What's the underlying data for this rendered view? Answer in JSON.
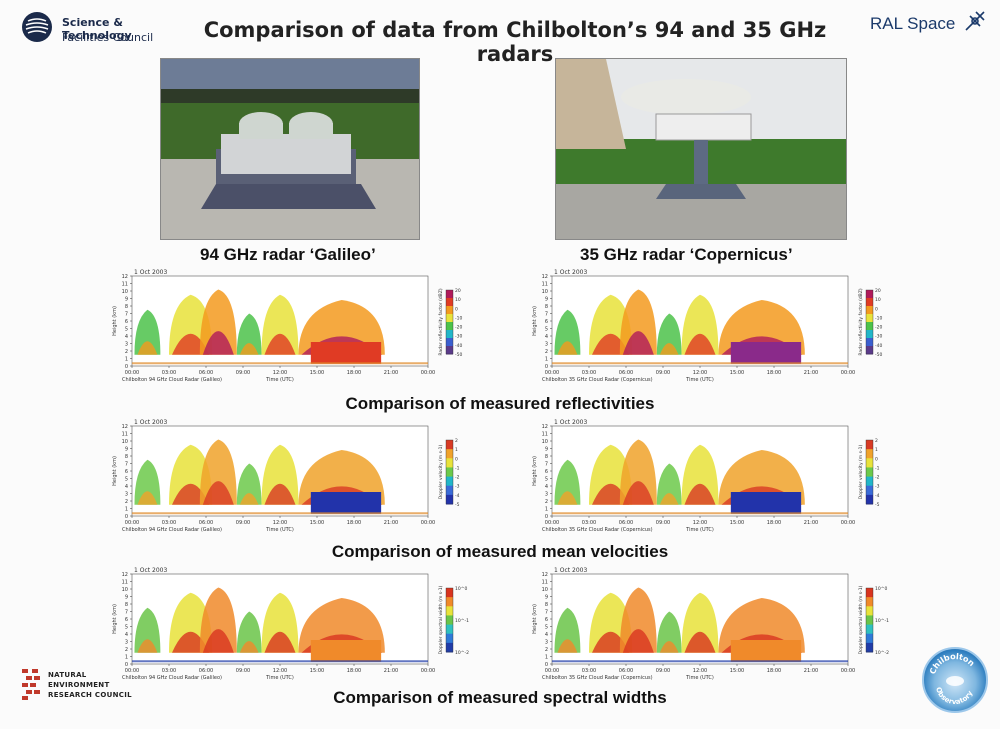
{
  "header": {
    "title": "Comparison of data from Chilbolton’s 94 and 35 GHz radars",
    "logo_left_line1": "Science & Technology",
    "logo_left_line2": "Facilities Council",
    "logo_right": "RAL Space"
  },
  "photos": {
    "left_caption": "94 GHz radar ‘Galileo’",
    "right_caption": "35 GHz radar ‘Copernicus’"
  },
  "sections": {
    "reflectivity": "Comparison of measured reflectivities",
    "velocity": "Comparison of measured mean velocities",
    "spectral_width": "Comparison of measured spectral widths"
  },
  "plots": {
    "date": "1 Oct 2003",
    "time_axis_label": "Time (UTC)",
    "height_axis_label": "Height (km)",
    "time_ticks": [
      "00:00",
      "03:00",
      "06:00",
      "09:00",
      "12:00",
      "15:00",
      "18:00",
      "21:00",
      "00:00"
    ],
    "height_ticks": [
      "0",
      "1",
      "2",
      "3",
      "4",
      "5",
      "6",
      "7",
      "8",
      "9",
      "10",
      "11",
      "12"
    ],
    "galileo_caption": "Chilbolton 94 GHz Cloud Radar (Galileo)",
    "copernicus_caption": "Chilbolton 35 GHz Cloud Radar (Copernicus)",
    "reflectivity_colorbar_label": "Radar reflectivity factor (dBZ)",
    "reflectivity_ticks": [
      "20",
      "10",
      "0",
      "-10",
      "-20",
      "-30",
      "-40",
      "-50"
    ],
    "velocity_colorbar_label": "Doppler velocity (m s-1)",
    "velocity_ticks": [
      "2",
      "1",
      "0",
      "-1",
      "-2",
      "-3",
      "-4",
      "-5"
    ],
    "width_colorbar_label": "Doppler spectral width (m s-1)",
    "width_ticks": [
      "10^0",
      "10^-1",
      "10^-2"
    ]
  },
  "footer": {
    "nerc_line1": "NATURAL",
    "nerc_line2": "ENVIRONMENT",
    "nerc_line3": "RESEARCH COUNCIL",
    "observatory_logo": "Chilbolton Observatory"
  },
  "colors": {
    "navy": "#1b2a4a",
    "nerc_red": "#c0392b",
    "reflectivity_scale": [
      "#5a3a8a",
      "#3a5fd0",
      "#21b6c9",
      "#4cc24a",
      "#e8e23a",
      "#f39a1e",
      "#e03b24",
      "#b01a5a"
    ],
    "velocity_scale": [
      "#2233aa",
      "#3a6bd8",
      "#21b6c9",
      "#6cc94a",
      "#e8e23a",
      "#f0a22a",
      "#d83a24"
    ],
    "width_scale": [
      "#203ca8",
      "#2f7ad8",
      "#2fc0c0",
      "#6ac448",
      "#e8e23a",
      "#f08a2a",
      "#d8341f"
    ]
  }
}
